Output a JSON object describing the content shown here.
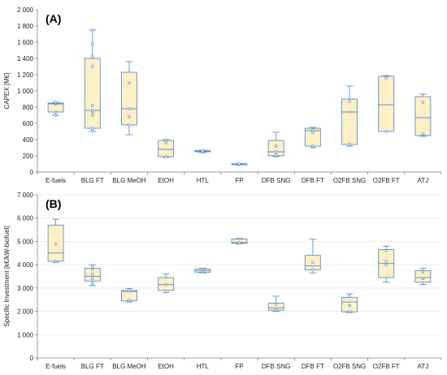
{
  "colors": {
    "box_fill": "#FDF0C6",
    "box_stroke": "#5B8FC9",
    "axis": "#7F7F7F",
    "grid": "#E6E6E6",
    "marker": "#5B8FC9"
  },
  "chart_data": [
    {
      "type": "boxplot",
      "panel_label": "(A)",
      "ylabel": "CAPEX [M€]",
      "ylim": [
        0,
        2000
      ],
      "yticks": [
        0,
        200,
        400,
        600,
        800,
        1000,
        1200,
        1400,
        1600,
        1800,
        2000
      ],
      "ytick_labels": [
        "0",
        "200",
        "400",
        "600",
        "800",
        "1 000",
        "1 200",
        "1 400",
        "1 600",
        "1 800",
        "2 000"
      ],
      "grid": false,
      "categories": [
        "E-fuels",
        "BLG FT",
        "BLG MeOH",
        "EtOH",
        "HTL",
        "FP",
        "DFB SNG",
        "DFB FT",
        "O2FB SNG",
        "O2FB FT",
        "ATJ"
      ],
      "boxes": [
        {
          "min": 700,
          "q1": 740,
          "median": 840,
          "q3": 850,
          "max": 860,
          "points": [
            700,
            740,
            840,
            850,
            860
          ]
        },
        {
          "min": 500,
          "q1": 540,
          "median": 760,
          "q3": 1400,
          "max": 1750,
          "points": [
            510,
            540,
            700,
            740,
            760,
            820,
            1300,
            1420,
            1580,
            1750
          ]
        },
        {
          "min": 460,
          "q1": 580,
          "median": 780,
          "q3": 1230,
          "max": 1360,
          "points": [
            580,
            680,
            780,
            1100
          ]
        },
        {
          "min": 180,
          "q1": 190,
          "median": 280,
          "q3": 390,
          "max": 400,
          "points": [
            190,
            360,
            390
          ]
        },
        {
          "min": 240,
          "q1": 250,
          "median": 260,
          "q3": 265,
          "max": 270,
          "points": [
            250,
            260
          ]
        },
        {
          "min": 90,
          "q1": 95,
          "median": 100,
          "q3": 102,
          "max": 105,
          "points": [
            95,
            100
          ]
        },
        {
          "min": 190,
          "q1": 200,
          "median": 250,
          "q3": 390,
          "max": 490,
          "points": [
            210,
            250,
            320
          ]
        },
        {
          "min": 300,
          "q1": 320,
          "median": 510,
          "q3": 540,
          "max": 550,
          "points": [
            320,
            490,
            520
          ]
        },
        {
          "min": 320,
          "q1": 340,
          "median": 740,
          "q3": 900,
          "max": 1060,
          "points": [
            340,
            740,
            870
          ]
        },
        {
          "min": 500,
          "q1": 500,
          "median": 830,
          "q3": 1180,
          "max": 1190,
          "points": [
            500,
            1160
          ]
        },
        {
          "min": 440,
          "q1": 450,
          "median": 670,
          "q3": 930,
          "max": 960,
          "points": [
            470,
            860
          ]
        }
      ]
    },
    {
      "type": "boxplot",
      "panel_label": "(B)",
      "ylabel": "Specific Investment [k€/kW-biofuel]",
      "ylim": [
        0,
        7000
      ],
      "yticks": [
        0,
        1000,
        2000,
        3000,
        4000,
        5000,
        6000,
        7000
      ],
      "ytick_labels": [
        "0",
        "1 000",
        "2 000",
        "3 000",
        "4 000",
        "5 000",
        "6 000",
        "7 000"
      ],
      "grid": true,
      "categories": [
        "E-fuels",
        "BLG FT",
        "BLG MeOH",
        "EtOH",
        "HTL",
        "FP",
        "DFB SNG",
        "DFB FT",
        "O2FB SNG",
        "O2FB FT",
        "ATJ"
      ],
      "boxes": [
        {
          "min": 4100,
          "q1": 4150,
          "median": 4500,
          "q3": 5700,
          "max": 5950,
          "points": [
            4150,
            4900
          ]
        },
        {
          "min": 3100,
          "q1": 3300,
          "median": 3500,
          "q3": 3850,
          "max": 4000,
          "points": [
            3200,
            3400,
            3600,
            3800,
            3950
          ]
        },
        {
          "min": 2400,
          "q1": 2450,
          "median": 2850,
          "q3": 2900,
          "max": 2980,
          "points": [
            2480,
            2900
          ]
        },
        {
          "min": 2800,
          "q1": 2900,
          "median": 3150,
          "q3": 3450,
          "max": 3600,
          "points": [
            3150,
            3450
          ]
        },
        {
          "min": 3650,
          "q1": 3680,
          "median": 3750,
          "q3": 3820,
          "max": 3850,
          "points": [
            3700,
            3800
          ]
        },
        {
          "min": 4900,
          "q1": 4920,
          "median": 4950,
          "q3": 5100,
          "max": 5130,
          "points": [
            4950
          ]
        },
        {
          "min": 2000,
          "q1": 2050,
          "median": 2150,
          "q3": 2350,
          "max": 2650,
          "points": [
            2050,
            2300
          ]
        },
        {
          "min": 3650,
          "q1": 3780,
          "median": 3950,
          "q3": 4400,
          "max": 5100,
          "points": [
            3800,
            4100
          ]
        },
        {
          "min": 1950,
          "q1": 1980,
          "median": 2400,
          "q3": 2600,
          "max": 2750,
          "points": [
            2000,
            2250,
            2650
          ]
        },
        {
          "min": 3250,
          "q1": 3450,
          "median": 4050,
          "q3": 4650,
          "max": 4800,
          "points": [
            4000,
            4150,
            4600
          ]
        },
        {
          "min": 3150,
          "q1": 3250,
          "median": 3450,
          "q3": 3750,
          "max": 3850,
          "points": [
            3400,
            3700
          ]
        }
      ]
    }
  ]
}
